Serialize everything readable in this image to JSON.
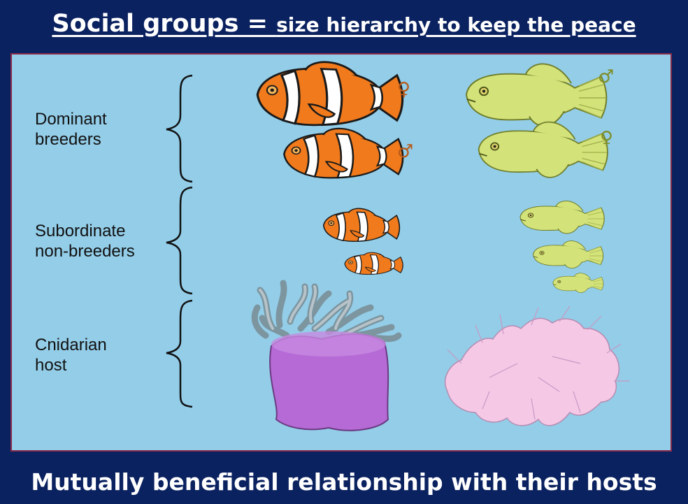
{
  "title": {
    "part1": "Social groups = ",
    "part2": "size hierarchy to keep the peace"
  },
  "rows": [
    {
      "line1": "Dominant",
      "line2": "breeders"
    },
    {
      "line1": "Subordinate",
      "line2": "non-breeders"
    },
    {
      "line1": "Cnidarian",
      "line2": "host"
    }
  ],
  "symbols": {
    "clown_top": "♀",
    "clown_second": "♂",
    "goby_top": "♂",
    "goby_second": "♀"
  },
  "footer": "Mutually beneficial relationship with their hosts",
  "colors": {
    "background": "#0b2260",
    "panel": "#93cde8",
    "clownfish": "#f07a1c",
    "goby": "#d4e27a",
    "anemone": "#b56ad6",
    "coral": "#f5c8e6"
  }
}
